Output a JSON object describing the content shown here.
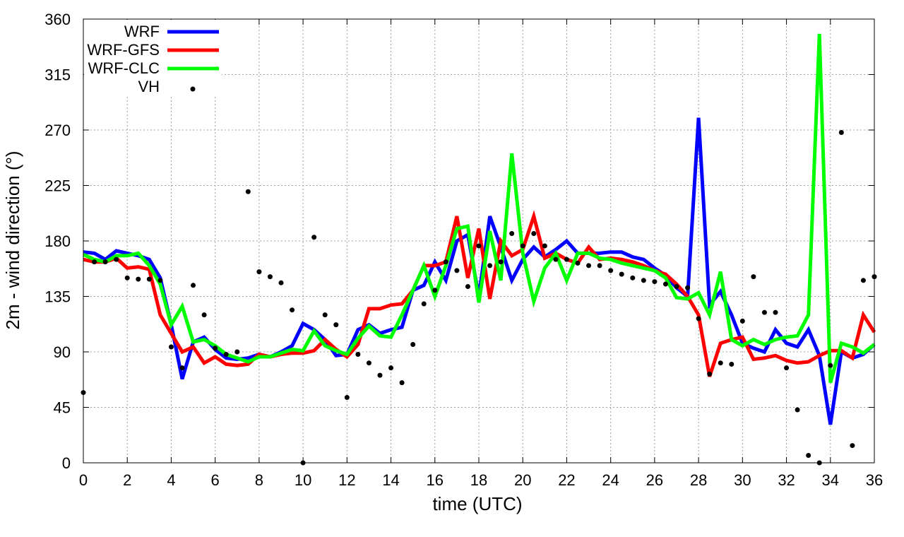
{
  "chart_data": {
    "type": "line",
    "title": "",
    "xlabel": "time (UTC)",
    "ylabel": "2m - wind direction (°)",
    "xlim": [
      0,
      36
    ],
    "ylim": [
      0,
      360
    ],
    "xticks": [
      0,
      2,
      4,
      6,
      8,
      10,
      12,
      14,
      16,
      18,
      20,
      22,
      24,
      26,
      28,
      30,
      32,
      34,
      36
    ],
    "yticks": [
      0,
      45,
      90,
      135,
      180,
      225,
      270,
      315,
      360
    ],
    "grid": true,
    "legend_position": "top-left",
    "series": [
      {
        "name": "WRF",
        "kind": "line",
        "color": "#0000ff",
        "x": [
          0,
          0.5,
          1,
          1.5,
          2,
          2.5,
          3,
          3.5,
          4,
          4.5,
          5,
          5.5,
          6,
          6.5,
          7,
          7.5,
          8,
          8.5,
          9,
          9.5,
          10,
          10.5,
          11,
          11.5,
          12,
          12.5,
          13,
          13.5,
          14,
          14.5,
          15,
          15.5,
          16,
          16.5,
          17,
          17.5,
          18,
          18.5,
          19,
          19.5,
          20,
          20.5,
          21,
          21.5,
          22,
          22.5,
          23,
          23.5,
          24,
          24.5,
          25,
          25.5,
          26,
          26.5,
          27,
          27.5,
          28,
          28.5,
          29,
          29.5,
          30,
          30.5,
          31,
          31.5,
          32,
          32.5,
          33,
          33.5,
          34,
          34.5,
          35,
          35.5,
          36
        ],
        "y": [
          171,
          170,
          165,
          172,
          170,
          168,
          165,
          150,
          112,
          68,
          98,
          102,
          92,
          85,
          84,
          85,
          88,
          86,
          90,
          95,
          113,
          108,
          100,
          87,
          88,
          108,
          112,
          105,
          108,
          110,
          140,
          144,
          163,
          148,
          180,
          185,
          135,
          200,
          175,
          148,
          165,
          175,
          167,
          173,
          180,
          170,
          170,
          170,
          171,
          171,
          167,
          165,
          158,
          152,
          142,
          135,
          280,
          128,
          139,
          120,
          97,
          93,
          90,
          108,
          97,
          94,
          108,
          87,
          31,
          90,
          85,
          88,
          96
        ]
      },
      {
        "name": "WRF-GFS",
        "kind": "line",
        "color": "#ff0000",
        "x": [
          0,
          0.5,
          1,
          1.5,
          2,
          2.5,
          3,
          3.5,
          4,
          4.5,
          5,
          5.5,
          6,
          6.5,
          7,
          7.5,
          8,
          8.5,
          9,
          9.5,
          10,
          10.5,
          11,
          11.5,
          12,
          12.5,
          13,
          13.5,
          14,
          14.5,
          15,
          15.5,
          16,
          16.5,
          17,
          17.5,
          18,
          18.5,
          19,
          19.5,
          20,
          20.5,
          21,
          21.5,
          22,
          22.5,
          23,
          23.5,
          24,
          24.5,
          25,
          25.5,
          26,
          26.5,
          27,
          27.5,
          28,
          28.5,
          29,
          29.5,
          30,
          30.5,
          31,
          31.5,
          32,
          32.5,
          33,
          33.5,
          34,
          34.5,
          35,
          35.5,
          36
        ],
        "y": [
          165,
          163,
          163,
          166,
          158,
          159,
          157,
          120,
          105,
          90,
          94,
          81,
          86,
          80,
          79,
          80,
          88,
          86,
          88,
          89,
          89,
          91,
          100,
          92,
          86,
          96,
          125,
          125,
          128,
          129,
          140,
          160,
          160,
          163,
          200,
          150,
          190,
          133,
          180,
          168,
          173,
          200,
          166,
          170,
          165,
          162,
          175,
          165,
          166,
          165,
          163,
          160,
          156,
          153,
          145,
          135,
          120,
          70,
          97,
          100,
          102,
          84,
          85,
          87,
          83,
          81,
          82,
          87,
          91,
          91,
          85,
          120,
          106
        ]
      },
      {
        "name": "WRF-CLC",
        "kind": "line",
        "color": "#00ff00",
        "x": [
          0,
          0.5,
          1,
          1.5,
          2,
          2.5,
          3,
          3.5,
          4,
          4.5,
          5,
          5.5,
          6,
          6.5,
          7,
          7.5,
          8,
          8.5,
          9,
          9.5,
          10,
          10.5,
          11,
          11.5,
          12,
          12.5,
          13,
          13.5,
          14,
          14.5,
          15,
          15.5,
          16,
          16.5,
          17,
          17.5,
          18,
          18.5,
          19,
          19.5,
          20,
          20.5,
          21,
          21.5,
          22,
          22.5,
          23,
          23.5,
          24,
          24.5,
          25,
          25.5,
          26,
          26.5,
          27,
          27.5,
          28,
          28.5,
          29,
          29.5,
          30,
          30.5,
          31,
          31.5,
          32,
          32.5,
          33,
          33.5,
          34,
          34.5,
          35,
          35.5,
          36
        ],
        "y": [
          169,
          165,
          163,
          168,
          168,
          170,
          160,
          145,
          112,
          127,
          98,
          100,
          95,
          88,
          85,
          82,
          86,
          86,
          89,
          92,
          91,
          107,
          95,
          91,
          88,
          101,
          111,
          103,
          102,
          120,
          140,
          160,
          135,
          160,
          190,
          192,
          130,
          188,
          148,
          251,
          170,
          131,
          158,
          170,
          148,
          170,
          170,
          166,
          165,
          162,
          160,
          158,
          156,
          150,
          134,
          133,
          138,
          120,
          155,
          100,
          95,
          100,
          96,
          100,
          102,
          103,
          120,
          348,
          65,
          97,
          94,
          89,
          96
        ]
      },
      {
        "name": "VH",
        "kind": "points",
        "color": "#000000",
        "x": [
          0,
          0.5,
          1,
          1.5,
          2,
          2.5,
          3,
          3.5,
          4,
          4.5,
          5,
          5.5,
          6,
          6.5,
          7,
          7.5,
          8,
          8.5,
          9,
          9.5,
          10,
          10.5,
          11,
          11.5,
          12,
          12.5,
          13,
          13.5,
          14,
          14.5,
          15,
          15.5,
          16,
          16.5,
          17,
          17.5,
          18,
          18.5,
          19,
          19.5,
          20,
          20.5,
          21,
          21.5,
          22,
          22.5,
          23,
          23.5,
          24,
          24.5,
          25,
          25.5,
          26,
          26.5,
          27,
          27.5,
          28,
          28.5,
          29,
          29.5,
          30,
          30.5,
          31,
          31.5,
          32,
          32.5,
          33,
          33.5,
          34,
          34.5,
          35,
          35.5,
          36
        ],
        "y": [
          57,
          163,
          163,
          165,
          150,
          149,
          149,
          148,
          94,
          77,
          144,
          120,
          93,
          88,
          90,
          220,
          155,
          151,
          146,
          124,
          0,
          183,
          120,
          112,
          53,
          88,
          81,
          71,
          77,
          65,
          96,
          129,
          140,
          163,
          156,
          143,
          176,
          160,
          163,
          186,
          176,
          186,
          176,
          165,
          165,
          162,
          160,
          160,
          156,
          153,
          150,
          148,
          147,
          145,
          143,
          142,
          117,
          72,
          81,
          80,
          115,
          151,
          122,
          122,
          77,
          43,
          6,
          0,
          79,
          268,
          14,
          148,
          151
        ]
      }
    ]
  }
}
